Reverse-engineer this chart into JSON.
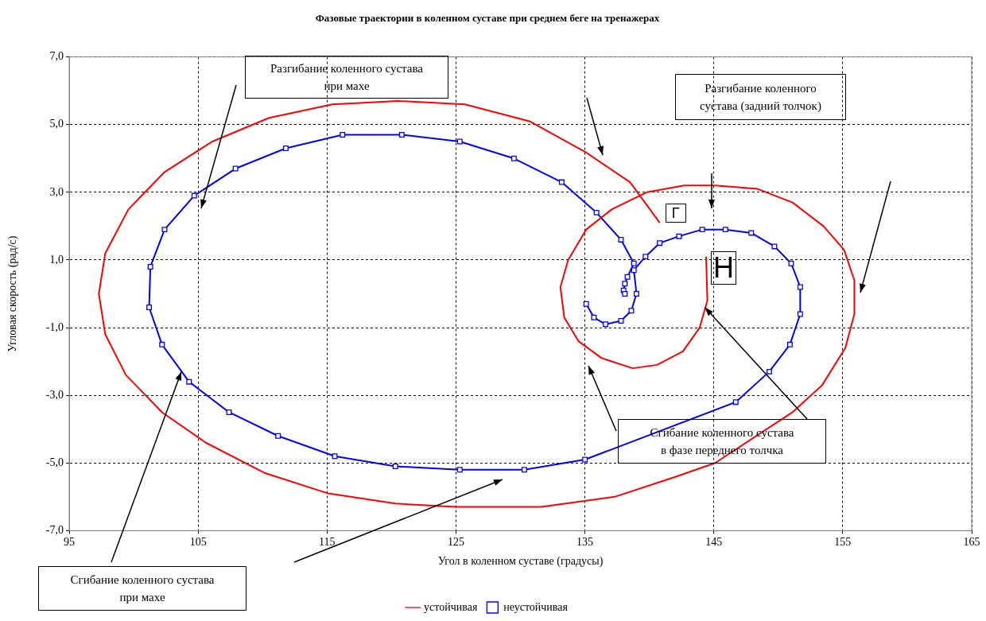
{
  "chart_data": {
    "type": "line",
    "title": "Фазовые траектории в коленном суставе при среднем беге на тренажерах",
    "xlabel": "Угол в коленном суставе (градусы)",
    "ylabel": "Угловая скорость (рад/с)",
    "xlim": [
      95,
      165
    ],
    "xticks": [
      95,
      105,
      115,
      125,
      135,
      145,
      155,
      165
    ],
    "ylim": [
      -7,
      7
    ],
    "yticks": [
      {
        "value": -7,
        "label": "-7,0"
      },
      {
        "value": -5,
        "label": "-5,0"
      },
      {
        "value": -3,
        "label": "-3,0"
      },
      {
        "value": -1,
        "label": "-1,0"
      },
      {
        "value": 1,
        "label": "1,0"
      },
      {
        "value": 3,
        "label": "3,0"
      },
      {
        "value": 5,
        "label": "5,0"
      },
      {
        "value": 7,
        "label": "7,0"
      }
    ],
    "grid": true,
    "legend": "bottom",
    "series": [
      {
        "name": "устойчивая",
        "color": "#ff0000",
        "marker": "none",
        "x": [
          144.4,
          144.5,
          143.9,
          142.6,
          140.6,
          138.7,
          136.3,
          134.5,
          133.4,
          133.1,
          133.7,
          135.1,
          137.1,
          139.8,
          142.7,
          145.1,
          148.4,
          151.1,
          153.5,
          155.1,
          155.9,
          155.9,
          155.2,
          153.4,
          151.1,
          145.1,
          142.1,
          137.3,
          131.6,
          129.7,
          125,
          120.3,
          115.1,
          110.2,
          105.6,
          102.2,
          99.4,
          97.8,
          97.3,
          97.8,
          99.6,
          102.4,
          106.1,
          110.5,
          115.4,
          120.5,
          125.7,
          130.7,
          135,
          138.5,
          140.8
        ],
        "values": [
          1.1,
          -0.2,
          -1.0,
          -1.7,
          -2.1,
          -2.2,
          -1.9,
          -1.4,
          -0.7,
          0.2,
          1.0,
          1.9,
          2.5,
          3.0,
          3.2,
          3.2,
          3.1,
          2.7,
          2.0,
          1.3,
          0.4,
          -0.6,
          -1.6,
          -2.7,
          -3.5,
          -5.0,
          -5.4,
          -6.0,
          -6.3,
          -6.3,
          -6.3,
          -6.2,
          -5.9,
          -5.3,
          -4.4,
          -3.5,
          -2.4,
          -1.2,
          0.0,
          1.2,
          2.5,
          3.6,
          4.5,
          5.2,
          5.6,
          5.7,
          5.6,
          5.1,
          4.2,
          3.3,
          2.1
        ]
      },
      {
        "name": "неустойчивая",
        "color": "#0000ff",
        "marker": "square",
        "x": [
          135.1,
          135.7,
          136.6,
          137.8,
          138.6,
          139,
          138.8,
          139.7,
          140.8,
          142.3,
          144.1,
          145.9,
          147.9,
          149.7,
          151,
          151.7,
          151.7,
          150.9,
          149.3,
          146.7,
          135,
          130.3,
          125.3,
          120.3,
          115.6,
          111.2,
          107.4,
          104.3,
          102.2,
          101.2,
          101.3,
          102.4,
          104.7,
          107.9,
          111.8,
          116.2,
          120.8,
          125.3,
          129.5,
          133.2,
          135.9,
          137.8,
          138.8,
          138.3,
          138.1,
          138,
          138.1
        ],
        "values": [
          -0.3,
          -0.7,
          -0.9,
          -0.8,
          -0.5,
          0.0,
          0.7,
          1.1,
          1.5,
          1.7,
          1.9,
          1.9,
          1.8,
          1.4,
          0.9,
          0.2,
          -0.6,
          -1.5,
          -2.3,
          -3.2,
          -4.9,
          -5.2,
          -5.2,
          -5.1,
          -4.8,
          -4.2,
          -3.5,
          -2.6,
          -1.5,
          -0.4,
          0.8,
          1.9,
          2.9,
          3.7,
          4.3,
          4.7,
          4.7,
          4.5,
          4.0,
          3.3,
          2.4,
          1.6,
          0.9,
          0.5,
          0.3,
          0.1,
          0.0
        ]
      }
    ],
    "annotations": [
      "Разгибание коленного сустава\nпри махе",
      "Разгибание коленного\nсустава (задний толчок)",
      {
        "text": "Сгибание коленного сустава\nв фазе переднего толчка",
        "x": 144.3,
        "y": -0.4
      },
      {
        "text": "Сгибание коленного сустава\nпри махе",
        "x": 103.7,
        "y": -2.3
      },
      {
        "text": "Г",
        "x": 140.8,
        "y": 2.1
      },
      {
        "text": "Н",
        "x": 144.4,
        "y": 1.1
      }
    ]
  }
}
